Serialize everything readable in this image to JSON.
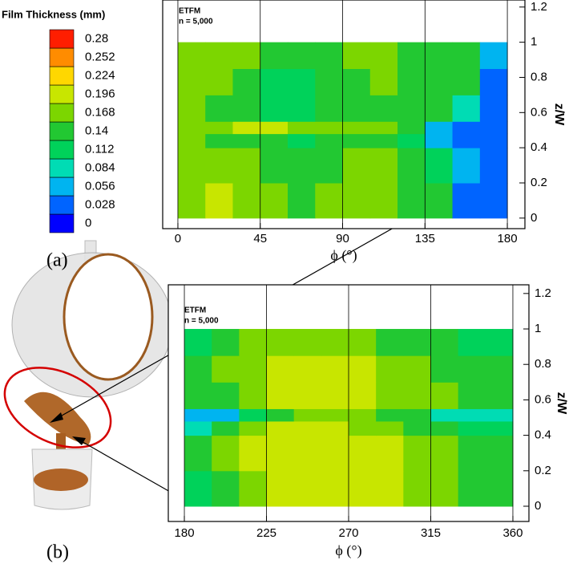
{
  "colorbar": {
    "title": "Film Thickness (mm)",
    "levels": [
      0,
      0.028,
      0.056,
      0.084,
      0.112,
      0.14,
      0.168,
      0.196,
      0.224,
      0.252,
      0.28
    ],
    "colors": [
      "#0000ff",
      "#0064ff",
      "#00b4f0",
      "#00dcb4",
      "#00d25a",
      "#22c832",
      "#7cd600",
      "#c8e600",
      "#ffd700",
      "#ff8c00",
      "#ff1e00"
    ]
  },
  "labels": {
    "a": "(a)",
    "b": "(b)"
  },
  "chart_data": [
    {
      "type": "contour",
      "annotations": [
        "ETFM",
        "n = 5,000"
      ],
      "xlabel": "ϕ (°)",
      "ylabel": "z/W",
      "xlim": [
        -8.3,
        189.6
      ],
      "ylim": [
        -0.06,
        1.24
      ],
      "xticks": [
        0,
        45,
        90,
        135,
        180
      ],
      "yticks": [
        0,
        0.2,
        0.4,
        0.6,
        0.8,
        1,
        1.2
      ],
      "grid": true,
      "x_edges": [
        0,
        15,
        30,
        45,
        60,
        75,
        90,
        105,
        120,
        135,
        150,
        165,
        180
      ],
      "y_edges": [
        0,
        0.2,
        0.4,
        0.48,
        0.55,
        0.7,
        0.85,
        1
      ],
      "values": [
        [
          0.19,
          0.2,
          0.18,
          0.17,
          0.16,
          0.17,
          0.18,
          0.17,
          0.16,
          0.15,
          0.05,
          0.03
        ],
        [
          0.18,
          0.19,
          0.17,
          0.16,
          0.15,
          0.16,
          0.17,
          0.18,
          0.16,
          0.12,
          0.06,
          0.03
        ],
        [
          0.17,
          0.16,
          0.15,
          0.14,
          0.13,
          0.14,
          0.16,
          0.15,
          0.13,
          0.08,
          0.04,
          0.03
        ],
        [
          0.18,
          0.19,
          0.2,
          0.2,
          0.19,
          0.18,
          0.19,
          0.17,
          0.14,
          0.06,
          0.04,
          0.03
        ],
        [
          0.17,
          0.16,
          0.15,
          0.13,
          0.13,
          0.14,
          0.16,
          0.15,
          0.16,
          0.15,
          0.1,
          0.04
        ],
        [
          0.18,
          0.17,
          0.14,
          0.13,
          0.12,
          0.14,
          0.16,
          0.17,
          0.16,
          0.16,
          0.15,
          0.05
        ],
        [
          0.19,
          0.18,
          0.17,
          0.16,
          0.15,
          0.16,
          0.17,
          0.17,
          0.16,
          0.15,
          0.14,
          0.06
        ]
      ]
    },
    {
      "type": "contour",
      "annotations": [
        "ETFM",
        "n = 5,000"
      ],
      "xlabel": "ϕ (°)",
      "ylabel": "z/W",
      "xlim": [
        171.2,
        368.8
      ],
      "ylim": [
        -0.086,
        1.249
      ],
      "xticks": [
        180,
        225,
        270,
        315,
        360
      ],
      "yticks": [
        0,
        0.2,
        0.4,
        0.6,
        0.8,
        1,
        1.2
      ],
      "grid": true,
      "x_edges": [
        180,
        195,
        210,
        225,
        240,
        255,
        270,
        285,
        300,
        315,
        330,
        345,
        360
      ],
      "y_edges": [
        0,
        0.2,
        0.4,
        0.48,
        0.55,
        0.7,
        0.85,
        1
      ],
      "values": [
        [
          0.12,
          0.16,
          0.19,
          0.21,
          0.22,
          0.22,
          0.21,
          0.2,
          0.19,
          0.18,
          0.15,
          0.14
        ],
        [
          0.14,
          0.17,
          0.2,
          0.22,
          0.22,
          0.22,
          0.21,
          0.2,
          0.19,
          0.18,
          0.16,
          0.15
        ],
        [
          0.1,
          0.15,
          0.18,
          0.2,
          0.21,
          0.2,
          0.19,
          0.17,
          0.16,
          0.14,
          0.13,
          0.12
        ],
        [
          0.06,
          0.08,
          0.12,
          0.15,
          0.18,
          0.19,
          0.17,
          0.16,
          0.14,
          0.1,
          0.09,
          0.1
        ],
        [
          0.14,
          0.16,
          0.18,
          0.2,
          0.21,
          0.21,
          0.2,
          0.19,
          0.18,
          0.17,
          0.15,
          0.14
        ],
        [
          0.15,
          0.17,
          0.19,
          0.21,
          0.22,
          0.21,
          0.2,
          0.19,
          0.17,
          0.16,
          0.15,
          0.14
        ],
        [
          0.12,
          0.15,
          0.17,
          0.18,
          0.19,
          0.18,
          0.17,
          0.16,
          0.15,
          0.14,
          0.13,
          0.12
        ]
      ]
    }
  ]
}
